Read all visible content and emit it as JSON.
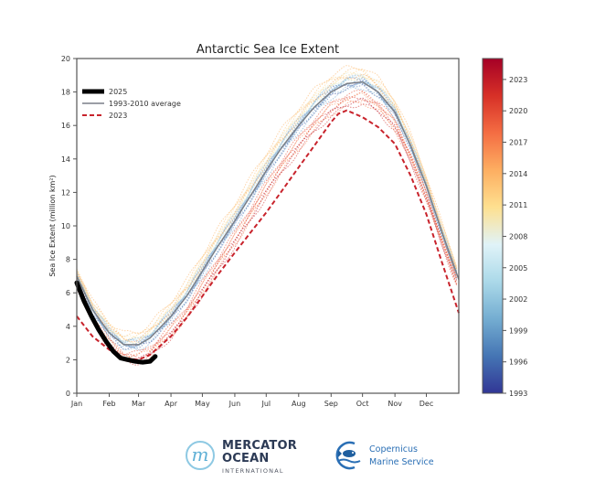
{
  "chart_data": {
    "type": "line",
    "title": "Antarctic Sea Ice Extent",
    "xlabel": "",
    "ylabel": "Sea Ice Extent (million km²)",
    "ylim": [
      0,
      20
    ],
    "xlim": [
      0,
      365
    ],
    "yticks": [
      0,
      2,
      4,
      6,
      8,
      10,
      12,
      14,
      16,
      18,
      20
    ],
    "xtick_labels": [
      "Jan",
      "Feb",
      "Mar",
      "Apr",
      "May",
      "Jun",
      "Jul",
      "Aug",
      "Sep",
      "Oct",
      "Nov",
      "Dec"
    ],
    "xtick_days": [
      0,
      31,
      59,
      90,
      120,
      151,
      181,
      212,
      243,
      273,
      304,
      334
    ],
    "grid": false,
    "legend": {
      "placement": "top-left",
      "entries": [
        {
          "label": "2025",
          "style": "thick-solid",
          "color": "#000000"
        },
        {
          "label": "1993-2010 average",
          "style": "solid",
          "color": "#808080"
        },
        {
          "label": "2023",
          "style": "dashed",
          "color": "#d62728"
        }
      ]
    },
    "series": [
      {
        "name": "2025",
        "x": [
          0,
          7,
          14,
          21,
          28,
          35,
          42,
          49,
          56,
          63,
          70,
          75
        ],
        "values": [
          6.6,
          5.5,
          4.6,
          3.8,
          3.1,
          2.5,
          2.1,
          2.0,
          1.9,
          1.85,
          1.9,
          2.2
        ]
      },
      {
        "name": "1993-2010 average",
        "x": [
          0,
          15,
          31,
          45,
          59,
          70,
          90,
          105,
          120,
          135,
          151,
          166,
          181,
          196,
          212,
          227,
          243,
          258,
          273,
          288,
          304,
          319,
          334,
          349,
          365
        ],
        "values": [
          7.0,
          5.0,
          3.6,
          2.9,
          2.9,
          3.3,
          4.6,
          5.8,
          7.3,
          8.8,
          10.3,
          11.8,
          13.3,
          14.7,
          16.0,
          17.1,
          18.0,
          18.5,
          18.6,
          18.0,
          16.8,
          14.8,
          12.4,
          9.6,
          6.8
        ]
      },
      {
        "name": "2023",
        "x": [
          0,
          15,
          31,
          45,
          59,
          70,
          90,
          105,
          120,
          135,
          151,
          166,
          181,
          196,
          212,
          227,
          243,
          250,
          258,
          273,
          288,
          304,
          319,
          334,
          349,
          365
        ],
        "values": [
          4.6,
          3.4,
          2.6,
          2.1,
          2.0,
          2.3,
          3.4,
          4.5,
          5.8,
          7.1,
          8.4,
          9.6,
          10.8,
          12.1,
          13.5,
          14.8,
          16.2,
          16.7,
          16.9,
          16.5,
          15.9,
          14.9,
          13.0,
          10.7,
          7.8,
          4.8
        ]
      }
    ],
    "year_curves": {
      "years": [
        1993,
        1994,
        1995,
        1996,
        1997,
        1998,
        1999,
        2000,
        2001,
        2002,
        2003,
        2004,
        2005,
        2006,
        2007,
        2008,
        2009,
        2010,
        2011,
        2012,
        2013,
        2014,
        2015,
        2016,
        2017,
        2018,
        2019,
        2020,
        2021,
        2022,
        2024
      ],
      "offsets": [
        0.0,
        -0.2,
        0.2,
        -0.1,
        0.1,
        0.3,
        -0.3,
        0.0,
        -0.2,
        0.2,
        0.1,
        0.0,
        0.3,
        0.2,
        0.5,
        0.2,
        0.4,
        0.5,
        0.3,
        0.6,
        0.7,
        0.9,
        0.4,
        -0.8,
        -1.2,
        -1.0,
        -0.7,
        -0.6,
        -0.9,
        -1.3,
        -1.1
      ]
    },
    "colorbar": {
      "min": 1993,
      "max": 2025,
      "ticks": [
        1993,
        1996,
        1999,
        2002,
        2005,
        2008,
        2011,
        2014,
        2017,
        2020,
        2023
      ],
      "colormap": "RdYlBu_r",
      "stops": [
        "#313695",
        "#4575b4",
        "#74add1",
        "#abd9e9",
        "#e0f3f8",
        "#fee090",
        "#fdae61",
        "#f46d43",
        "#d73027",
        "#a50026"
      ]
    }
  },
  "logos": {
    "mercator": {
      "line1": "MERCATOR",
      "line2": "OCEAN",
      "line3": "INTERNATIONAL",
      "glyph": "m"
    },
    "copernicus": {
      "line1": "Copernicus",
      "line2": "Marine Service"
    }
  }
}
